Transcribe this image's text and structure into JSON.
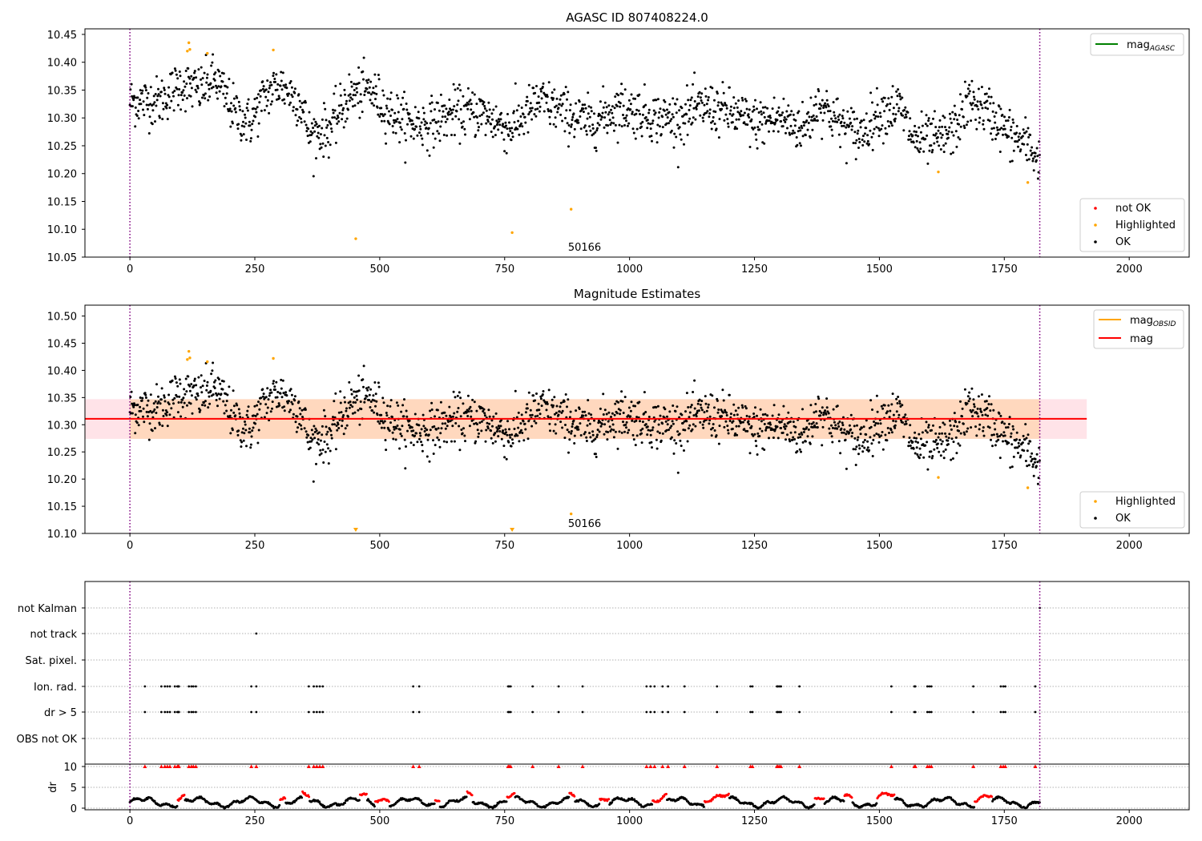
{
  "chart_data": [
    {
      "type": "scatter",
      "title": "AGASC ID 807408224.0",
      "xlim": [
        -90,
        2120
      ],
      "ylim": [
        10.05,
        10.46
      ],
      "xticks": [
        0,
        250,
        500,
        750,
        1000,
        1250,
        1500,
        1750,
        2000
      ],
      "xtick_labels": [
        "0",
        "250",
        "500",
        "750",
        "1000",
        "1250",
        "1500",
        "1750",
        "2000"
      ],
      "yticks": [
        10.05,
        10.1,
        10.15,
        10.2,
        10.25,
        10.3,
        10.35,
        10.4,
        10.45
      ],
      "ytick_labels": [
        "10.05",
        "10.10",
        "10.15",
        "10.20",
        "10.25",
        "10.30",
        "10.35",
        "10.40",
        "10.45"
      ],
      "obsid_boundaries": [
        0,
        1821
      ],
      "obsid_label": {
        "x": 910,
        "y": 10.067,
        "text": "50166"
      },
      "series_legend": {
        "placement": "lower-right",
        "entries": [
          {
            "label": "not OK",
            "color": "#ff0000"
          },
          {
            "label": "Highlighted",
            "color": "#ffa500"
          },
          {
            "label": "OK",
            "color": "#000000"
          }
        ]
      },
      "line_legend": {
        "placement": "upper-right",
        "entries": [
          {
            "label": "mag",
            "subscript": "AGASC",
            "color": "#008000"
          }
        ]
      },
      "highlighted_points": [
        [
          115,
          10.42
        ],
        [
          118,
          10.435
        ],
        [
          120,
          10.423
        ],
        [
          155,
          10.416
        ],
        [
          287,
          10.422
        ],
        [
          452,
          10.083
        ],
        [
          765,
          10.094
        ],
        [
          883,
          10.136
        ],
        [
          1618,
          10.203
        ],
        [
          1797,
          10.184
        ]
      ]
    },
    {
      "type": "scatter",
      "title": "Magnitude Estimates",
      "xlim": [
        -90,
        2120
      ],
      "ylim": [
        10.1,
        10.52
      ],
      "xticks": [
        0,
        250,
        500,
        750,
        1000,
        1250,
        1500,
        1750,
        2000
      ],
      "xtick_labels": [
        "0",
        "250",
        "500",
        "750",
        "1000",
        "1250",
        "1500",
        "1750",
        "2000"
      ],
      "yticks": [
        10.1,
        10.15,
        10.2,
        10.25,
        10.3,
        10.35,
        10.4,
        10.45,
        10.5
      ],
      "ytick_labels": [
        "10.10",
        "10.15",
        "10.20",
        "10.25",
        "10.30",
        "10.35",
        "10.40",
        "10.45",
        "10.50"
      ],
      "obsid_boundaries": [
        0,
        1821
      ],
      "obsid_label": {
        "x": 910,
        "y": 10.118,
        "text": "50166"
      },
      "mag_mean": 10.311,
      "mag_band": [
        10.274,
        10.347
      ],
      "mag_band_x": [
        -90,
        1915
      ],
      "obsid_band_x": [
        0,
        1821
      ],
      "series_legend": {
        "placement": "lower-right",
        "entries": [
          {
            "label": "Highlighted",
            "color": "#ffa500"
          },
          {
            "label": "OK",
            "color": "#000000"
          }
        ]
      },
      "line_legend": {
        "placement": "upper-right",
        "entries": [
          {
            "label": "mag",
            "subscript": "OBSID",
            "color": "#ffa500"
          },
          {
            "label": "mag",
            "subscript": "",
            "color": "#ff0000"
          }
        ]
      },
      "highlighted_points": [
        [
          115,
          10.42
        ],
        [
          118,
          10.435
        ],
        [
          120,
          10.423
        ],
        [
          155,
          10.416
        ],
        [
          287,
          10.422
        ],
        [
          883,
          10.136
        ],
        [
          1618,
          10.203
        ],
        [
          1797,
          10.184
        ]
      ],
      "off_scale_markers": [
        452,
        765
      ]
    },
    {
      "type": "scatter",
      "title": "",
      "xlim": [
        -90,
        2120
      ],
      "xticks": [
        0,
        250,
        500,
        750,
        1000,
        1250,
        1500,
        1750,
        2000
      ],
      "xtick_labels": [
        "0",
        "250",
        "500",
        "750",
        "1000",
        "1250",
        "1500",
        "1750",
        "2000"
      ],
      "flag_rows": [
        "not Kalman",
        "not track",
        "Sat. pixel.",
        "Ion. rad.",
        "dr > 5",
        "OBS not OK"
      ],
      "flag_points": {
        "not Kalman": [
          1821
        ],
        "not track": [
          253
        ],
        "Sat. pixel.": [],
        "Ion. rad.": [
          30,
          63,
          70,
          75,
          80,
          90,
          95,
          97,
          98,
          118,
          123,
          127,
          132,
          243,
          253,
          358,
          368,
          374,
          380,
          386,
          567,
          579,
          757,
          759,
          762,
          806,
          858,
          906,
          1034,
          1042,
          1050,
          1066,
          1077,
          1110,
          1175,
          1242,
          1246,
          1295,
          1297,
          1300,
          1303,
          1340,
          1524,
          1570,
          1572,
          1596,
          1600,
          1604,
          1688,
          1743,
          1748,
          1752,
          1812
        ],
        "dr > 5": [
          30,
          63,
          70,
          75,
          80,
          90,
          95,
          97,
          98,
          118,
          123,
          127,
          132,
          243,
          253,
          358,
          368,
          374,
          380,
          386,
          567,
          579,
          757,
          759,
          762,
          806,
          858,
          906,
          1034,
          1042,
          1050,
          1066,
          1077,
          1110,
          1175,
          1242,
          1246,
          1295,
          1297,
          1300,
          1303,
          1340,
          1524,
          1570,
          1572,
          1596,
          1600,
          1604,
          1688,
          1743,
          1748,
          1752,
          1812
        ],
        "OBS not OK": []
      },
      "dr_panel": {
        "ylabel": "dr",
        "ylim": [
          0,
          10
        ],
        "yticks": [
          0,
          5,
          10
        ],
        "ytick_labels": [
          "0",
          "5",
          "10"
        ],
        "capped_markers_at": 10,
        "red_segments": [
          [
            95,
            110
          ],
          [
            300,
            312
          ],
          [
            345,
            360
          ],
          [
            460,
            475
          ],
          [
            490,
            520
          ],
          [
            610,
            620
          ],
          [
            675,
            685
          ],
          [
            755,
            770
          ],
          [
            880,
            890
          ],
          [
            940,
            960
          ],
          [
            1045,
            1075
          ],
          [
            1150,
            1200
          ],
          [
            1370,
            1390
          ],
          [
            1430,
            1445
          ],
          [
            1495,
            1530
          ],
          [
            1690,
            1725
          ]
        ]
      }
    }
  ]
}
